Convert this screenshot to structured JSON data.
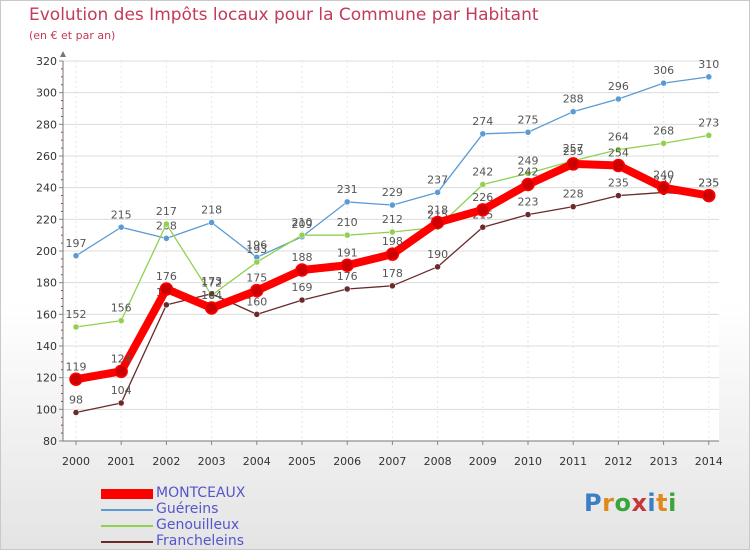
{
  "title": "Evolution des Impôts locaux pour la Commune par Habitant",
  "subtitle": "(en € et par an)",
  "logo": {
    "text": "Proxiti",
    "colors": [
      "#3a7fc4",
      "#e08a1e",
      "#3aa53a",
      "#c43a3a"
    ]
  },
  "chart_data": {
    "type": "line",
    "title": "Evolution des Impôts locaux pour la Commune par Habitant",
    "ylabel": "(en € et par an)",
    "xlabel": "",
    "ylim": [
      80,
      320
    ],
    "yticks": [
      80,
      100,
      120,
      140,
      160,
      180,
      200,
      220,
      240,
      260,
      280,
      300,
      320
    ],
    "grid": true,
    "legend_position": "bottom-left",
    "x": [
      "2000",
      "2001",
      "2002",
      "2003",
      "2004",
      "2005",
      "2006",
      "2007",
      "2008",
      "2009",
      "2010",
      "2011",
      "2012",
      "2013",
      "2014"
    ],
    "series": [
      {
        "name": "Guéreins",
        "color": "#5b9bd5",
        "values": [
          197,
          215,
          208,
          218,
          196,
          209,
          231,
          229,
          237,
          274,
          275,
          288,
          296,
          306,
          310
        ]
      },
      {
        "name": "Genouilleux",
        "color": "#92d050",
        "values": [
          152,
          156,
          217,
          172,
          193,
          210,
          210,
          212,
          215,
          242,
          249,
          257,
          264,
          268,
          273
        ]
      },
      {
        "name": "Francheleins",
        "color": "#6b2a2a",
        "values": [
          98,
          104,
          166,
          173,
          160,
          169,
          176,
          178,
          190,
          215,
          223,
          228,
          235,
          237,
          235
        ]
      },
      {
        "name": "MONTCEAUX",
        "color": "#ff0000",
        "values": [
          119,
          124,
          176,
          164,
          175,
          188,
          191,
          198,
          218,
          226,
          242,
          255,
          254,
          240,
          235
        ]
      }
    ]
  }
}
